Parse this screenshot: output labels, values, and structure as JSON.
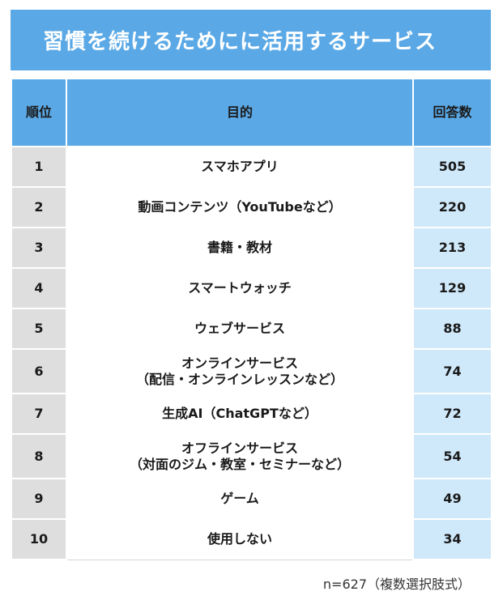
{
  "title": "習慣を続けるためにに活用するサービス",
  "note": "n=627（複数選択肢式）",
  "table": {
    "headers": {
      "rank": "順位",
      "purpose": "目的",
      "count": "回答数"
    },
    "rows": [
      {
        "rank": "1",
        "purpose_line1": "スマホアプリ",
        "purpose_line2": "",
        "count": "505"
      },
      {
        "rank": "2",
        "purpose_line1": "動画コンテンツ（YouTubeなど）",
        "purpose_line2": "",
        "count": "220"
      },
      {
        "rank": "3",
        "purpose_line1": "書籍・教材",
        "purpose_line2": "",
        "count": "213"
      },
      {
        "rank": "4",
        "purpose_line1": "スマートウォッチ",
        "purpose_line2": "",
        "count": "129"
      },
      {
        "rank": "5",
        "purpose_line1": "ウェブサービス",
        "purpose_line2": "",
        "count": "88"
      },
      {
        "rank": "6",
        "purpose_line1": "オンラインサービス",
        "purpose_line2": "（配信・オンラインレッスンなど）",
        "count": "74"
      },
      {
        "rank": "7",
        "purpose_line1": "生成AI（ChatGPTなど）",
        "purpose_line2": "",
        "count": "72"
      },
      {
        "rank": "8",
        "purpose_line1": "オフラインサービス",
        "purpose_line2": "（対面のジム・教室・セミナーなど）",
        "count": "54"
      },
      {
        "rank": "9",
        "purpose_line1": "ゲーム",
        "purpose_line2": "",
        "count": "49"
      },
      {
        "rank": "10",
        "purpose_line1": "使用しない",
        "purpose_line2": "",
        "count": "34"
      }
    ]
  },
  "chart_data": {
    "type": "table",
    "title": "習慣を続けるためにに活用するサービス",
    "columns": [
      "順位",
      "目的",
      "回答数"
    ],
    "categories": [
      "スマホアプリ",
      "動画コンテンツ（YouTubeなど）",
      "書籍・教材",
      "スマートウォッチ",
      "ウェブサービス",
      "オンラインサービス（配信・オンラインレッスンなど）",
      "生成AI（ChatGPTなど）",
      "オフラインサービス（対面のジム・教室・セミナーなど）",
      "ゲーム",
      "使用しない"
    ],
    "ranks": [
      1,
      2,
      3,
      4,
      5,
      6,
      7,
      8,
      9,
      10
    ],
    "values": [
      505,
      220,
      213,
      129,
      88,
      74,
      72,
      54,
      49,
      34
    ],
    "note": "n=627（複数選択肢式）"
  },
  "colors": {
    "header_blue": "#5aa9e6",
    "rank_gray": "#dedede",
    "count_light_blue": "#cfe9fb"
  }
}
